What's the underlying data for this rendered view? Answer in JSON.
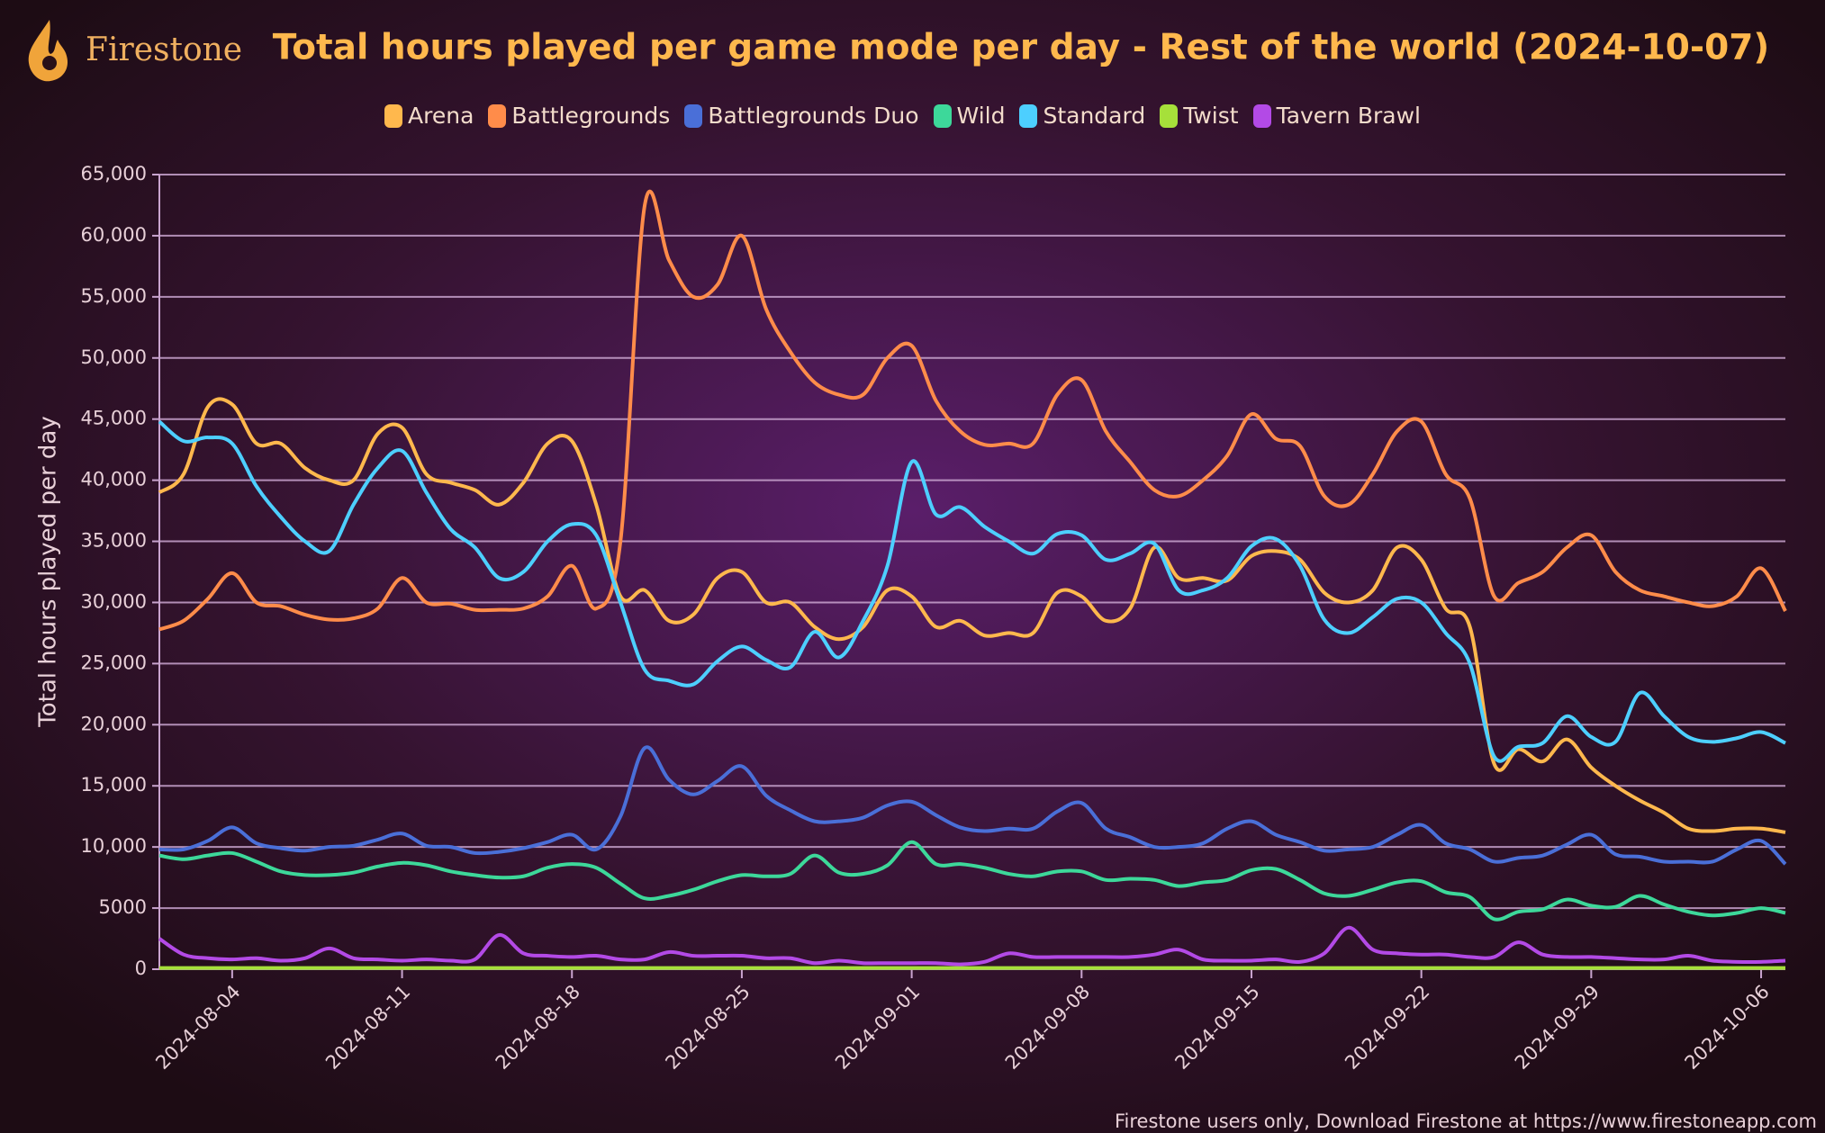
{
  "header": {
    "logo": "Firestone"
  },
  "footer": "Firestone users only, Download Firestone at https://www.firestoneapp.com",
  "chart_data": {
    "type": "line",
    "title": "Total hours played per game mode per day - Rest of the world (2024-10-07)",
    "y_label": "Total hours played per day",
    "x": [
      "2024-08-01",
      "2024-08-02",
      "2024-08-03",
      "2024-08-04",
      "2024-08-05",
      "2024-08-06",
      "2024-08-07",
      "2024-08-08",
      "2024-08-09",
      "2024-08-10",
      "2024-08-11",
      "2024-08-12",
      "2024-08-13",
      "2024-08-14",
      "2024-08-15",
      "2024-08-16",
      "2024-08-17",
      "2024-08-18",
      "2024-08-19",
      "2024-08-20",
      "2024-08-21",
      "2024-08-22",
      "2024-08-23",
      "2024-08-24",
      "2024-08-25",
      "2024-08-26",
      "2024-08-27",
      "2024-08-28",
      "2024-08-29",
      "2024-08-30",
      "2024-08-31",
      "2024-09-01",
      "2024-09-02",
      "2024-09-03",
      "2024-09-04",
      "2024-09-05",
      "2024-09-06",
      "2024-09-07",
      "2024-09-08",
      "2024-09-09",
      "2024-09-10",
      "2024-09-11",
      "2024-09-12",
      "2024-09-13",
      "2024-09-14",
      "2024-09-15",
      "2024-09-16",
      "2024-09-17",
      "2024-09-18",
      "2024-09-19",
      "2024-09-20",
      "2024-09-21",
      "2024-09-22",
      "2024-09-23",
      "2024-09-24",
      "2024-09-25",
      "2024-09-26",
      "2024-09-27",
      "2024-09-28",
      "2024-09-29",
      "2024-09-30",
      "2024-10-01",
      "2024-10-02",
      "2024-10-03",
      "2024-10-04",
      "2024-10-05",
      "2024-10-06",
      "2024-10-07"
    ],
    "xticks": [
      "2024-08-04",
      "2024-08-11",
      "2024-08-18",
      "2024-08-25",
      "2024-09-01",
      "2024-09-08",
      "2024-09-15",
      "2024-09-22",
      "2024-09-29",
      "2024-10-06"
    ],
    "ylim": [
      0,
      65000
    ],
    "yticks": [
      0,
      5000,
      {
        "value": 10000,
        "label": "10,000"
      },
      {
        "value": 15000,
        "label": "15,000"
      },
      {
        "value": 20000,
        "label": "20,000"
      },
      {
        "value": 25000,
        "label": "25,000"
      },
      {
        "value": 30000,
        "label": "30,000"
      },
      {
        "value": 35000,
        "label": "35,000"
      },
      {
        "value": 40000,
        "label": "40,000"
      },
      {
        "value": 45000,
        "label": "45,000"
      },
      {
        "value": 50000,
        "label": "50,000"
      },
      {
        "value": 55000,
        "label": "55,000"
      },
      {
        "value": 60000,
        "label": "60,000"
      },
      {
        "value": 65000,
        "label": "65,000"
      }
    ],
    "grid": true,
    "series": [
      {
        "name": "Arena",
        "color": "#ffb84d",
        "values": [
          39000,
          40500,
          46000,
          46200,
          43000,
          43000,
          41000,
          40000,
          40000,
          43800,
          44300,
          40500,
          39800,
          39200,
          38000,
          39800,
          43000,
          43200,
          38000,
          30500,
          31000,
          28500,
          29000,
          32000,
          32500,
          30000,
          30000,
          28000,
          27000,
          28000,
          31000,
          30500,
          28000,
          28500,
          27300,
          27500,
          27500,
          30800,
          30500,
          28500,
          29500,
          34500,
          32000,
          32000,
          31800,
          33800,
          34200,
          33500,
          30800,
          30000,
          31000,
          34500,
          33500,
          29500,
          28000,
          16800,
          18000,
          17000,
          18800,
          16500,
          15000,
          13800,
          12800,
          11500,
          11300,
          11500,
          11500,
          11200
        ]
      },
      {
        "name": "Battlegrounds",
        "color": "#ff8c4a",
        "values": [
          27800,
          28500,
          30300,
          32400,
          30000,
          29700,
          29000,
          28600,
          28700,
          29500,
          32000,
          30000,
          29900,
          29400,
          29400,
          29500,
          30500,
          33000,
          29500,
          35000,
          62500,
          58000,
          55000,
          56000,
          60000,
          54000,
          50500,
          48000,
          47000,
          47000,
          50000,
          51000,
          46500,
          44000,
          42900,
          43000,
          43000,
          47000,
          48200,
          44000,
          41500,
          39200,
          38700,
          40000,
          42000,
          45400,
          43400,
          42800,
          38700,
          38000,
          40500,
          44000,
          44800,
          40500,
          38500,
          30500,
          31600,
          32500,
          34500,
          35500,
          32500,
          31000,
          30500,
          30000,
          29700,
          30500,
          32800,
          29300
        ]
      },
      {
        "name": "Battlegrounds Duo",
        "color": "#4a6fd8",
        "values": [
          9800,
          9800,
          10500,
          11600,
          10300,
          9900,
          9700,
          10000,
          10100,
          10600,
          11100,
          10100,
          10000,
          9500,
          9600,
          9900,
          10400,
          11000,
          9800,
          12500,
          18100,
          15500,
          14300,
          15400,
          16600,
          14200,
          13000,
          12100,
          12100,
          12400,
          13400,
          13700,
          12600,
          11600,
          11300,
          11500,
          11500,
          12900,
          13600,
          11500,
          10800,
          10000,
          10000,
          10300,
          11500,
          12100,
          11000,
          10400,
          9700,
          9800,
          10000,
          11000,
          11800,
          10300,
          9800,
          8800,
          9100,
          9300,
          10200,
          11000,
          9400,
          9200,
          8800,
          8800,
          8800,
          9800,
          10500,
          8600
        ]
      },
      {
        "name": "Wild",
        "color": "#3dd89a",
        "values": [
          9300,
          9000,
          9300,
          9500,
          8800,
          8000,
          7700,
          7700,
          7900,
          8400,
          8700,
          8500,
          8000,
          7700,
          7500,
          7600,
          8300,
          8600,
          8300,
          7000,
          5800,
          6000,
          6500,
          7200,
          7700,
          7600,
          7800,
          9300,
          7900,
          7800,
          8500,
          10400,
          8600,
          8600,
          8300,
          7800,
          7600,
          8000,
          8000,
          7300,
          7400,
          7300,
          6800,
          7100,
          7300,
          8100,
          8200,
          7300,
          6200,
          6000,
          6500,
          7100,
          7200,
          6300,
          5900,
          4100,
          4700,
          4900,
          5700,
          5200,
          5100,
          6000,
          5300,
          4700,
          4400,
          4600,
          5000,
          4600
        ]
      },
      {
        "name": "Standard",
        "color": "#4dcfff",
        "values": [
          44800,
          43200,
          43500,
          43000,
          39500,
          37000,
          35000,
          34200,
          38000,
          41000,
          42400,
          39000,
          36000,
          34500,
          32000,
          32500,
          35000,
          36400,
          35500,
          30000,
          24500,
          23600,
          23300,
          25200,
          26400,
          25300,
          24700,
          27600,
          25500,
          28500,
          33000,
          41500,
          37200,
          37800,
          36200,
          35000,
          34000,
          35600,
          35500,
          33500,
          34000,
          34800,
          31000,
          31000,
          32000,
          34600,
          35200,
          33000,
          28600,
          27500,
          28800,
          30300,
          30000,
          27500,
          25000,
          17400,
          18200,
          18500,
          20700,
          19000,
          18600,
          22600,
          20700,
          19000,
          18600,
          18900,
          19400,
          18500
        ]
      },
      {
        "name": "Twist",
        "color": "#a6e03a",
        "values": [
          100,
          100,
          100,
          100,
          100,
          100,
          100,
          100,
          100,
          100,
          100,
          100,
          100,
          100,
          100,
          100,
          100,
          100,
          100,
          100,
          100,
          100,
          100,
          100,
          100,
          100,
          100,
          100,
          100,
          100,
          100,
          100,
          100,
          100,
          100,
          100,
          100,
          100,
          100,
          100,
          100,
          100,
          100,
          100,
          100,
          100,
          100,
          100,
          100,
          100,
          100,
          100,
          100,
          100,
          100,
          100,
          100,
          100,
          100,
          100,
          100,
          100,
          100,
          100,
          100,
          100,
          100,
          100
        ]
      },
      {
        "name": "Tavern Brawl",
        "color": "#b34ae6",
        "values": [
          2500,
          1200,
          900,
          800,
          900,
          700,
          900,
          1700,
          900,
          800,
          700,
          800,
          700,
          800,
          2800,
          1300,
          1100,
          1000,
          1100,
          800,
          800,
          1400,
          1100,
          1100,
          1100,
          900,
          900,
          500,
          700,
          500,
          500,
          500,
          500,
          400,
          600,
          1300,
          1000,
          1000,
          1000,
          1000,
          1000,
          1200,
          1600,
          800,
          700,
          700,
          800,
          600,
          1300,
          3400,
          1600,
          1300,
          1200,
          1200,
          1000,
          1000,
          2200,
          1200,
          1000,
          1000,
          900,
          800,
          800,
          1100,
          700,
          600,
          600,
          700
        ]
      }
    ]
  }
}
